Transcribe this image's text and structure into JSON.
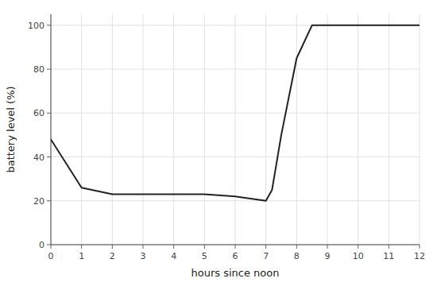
{
  "chart_data": {
    "type": "line",
    "x": [
      0,
      1,
      2,
      2.5,
      3,
      4,
      5,
      6,
      6.5,
      7,
      7.2,
      7.5,
      8,
      8.5,
      9,
      10,
      11,
      12
    ],
    "values": [
      48,
      26,
      23,
      23,
      23,
      23,
      23,
      22,
      21,
      20,
      25,
      50,
      85,
      100,
      100,
      100,
      100,
      100
    ],
    "xlabel": "hours since noon",
    "ylabel": "battery level (%)",
    "xlim": [
      0,
      12
    ],
    "ylim": [
      0,
      105
    ],
    "xticks": [
      0,
      1,
      2,
      3,
      4,
      5,
      6,
      7,
      8,
      9,
      10,
      11,
      12
    ],
    "yticks": [
      0,
      20,
      40,
      60,
      80,
      100
    ],
    "color": "#222222",
    "grid": true
  }
}
